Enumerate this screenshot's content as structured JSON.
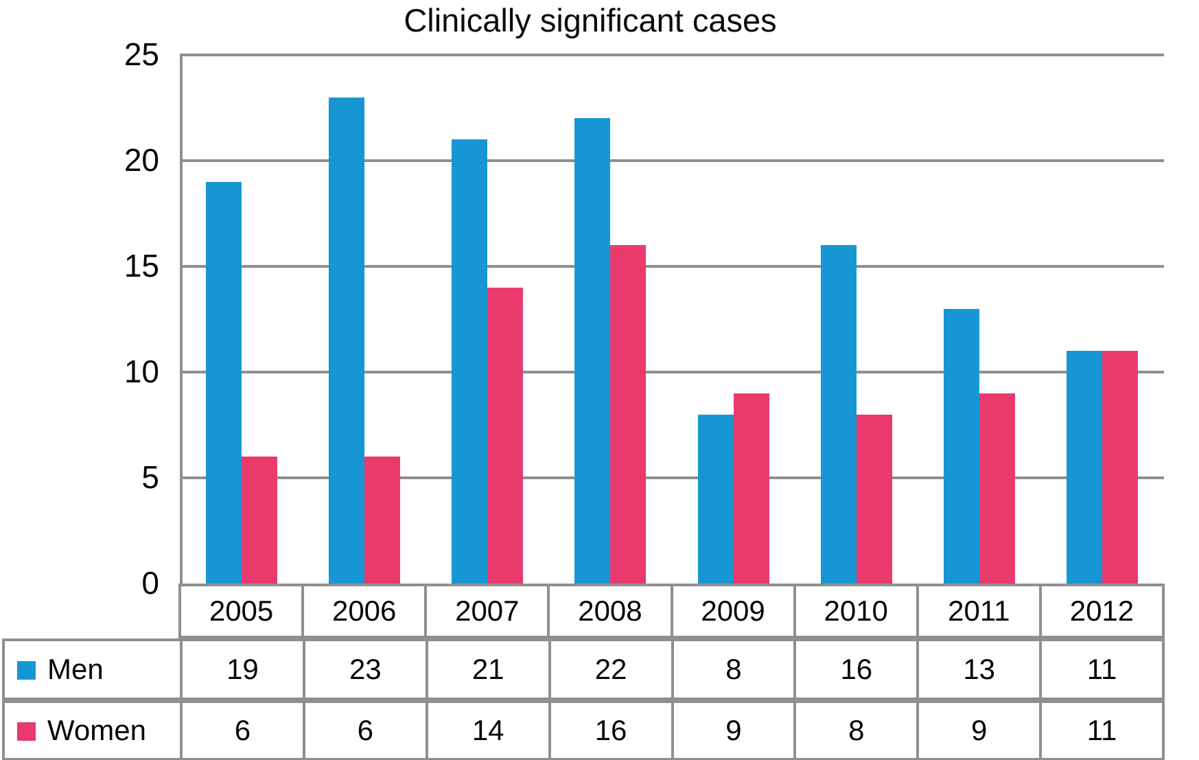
{
  "chart_data": {
    "type": "bar",
    "title": "Clinically significant cases",
    "categories": [
      "2005",
      "2006",
      "2007",
      "2008",
      "2009",
      "2010",
      "2011",
      "2012"
    ],
    "series": [
      {
        "name": "Men",
        "color": "#1697D4",
        "values": [
          19,
          23,
          21,
          22,
          8,
          16,
          13,
          11
        ]
      },
      {
        "name": "Women",
        "color": "#E93A6E",
        "values": [
          6,
          6,
          14,
          16,
          9,
          8,
          9,
          11
        ]
      }
    ],
    "xlabel": "",
    "ylabel": "",
    "ylim": [
      0,
      25
    ],
    "y_ticks": [
      0,
      5,
      10,
      15,
      20,
      25
    ],
    "grid": true,
    "legend_position": "table-rows-left"
  },
  "colors": {
    "grid": "#8f8f8f",
    "table_border": "#8f8f8f",
    "text": "#050505",
    "background": "#ffffff"
  }
}
